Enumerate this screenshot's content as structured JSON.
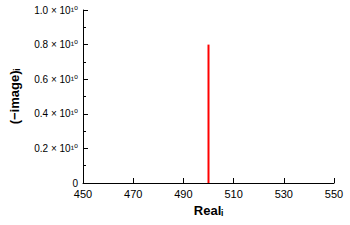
{
  "chart_data": {
    "type": "bar",
    "x_label": "Realᵢ",
    "y_label": "(−image)ᵢ",
    "x": [
      500
    ],
    "values": [
      8000000000
    ],
    "color": "#ff0000",
    "xlim": [
      450,
      550
    ],
    "xticks": [
      450,
      470,
      490,
      510,
      530,
      550
    ],
    "ylim": [
      0,
      10000000000
    ],
    "yticks": [
      0,
      {
        "value": 2000000000,
        "label": "0.2 × 10¹⁰"
      },
      {
        "value": 4000000000,
        "label": "0.4 × 10¹⁰"
      },
      {
        "value": 6000000000,
        "label": "0.6 × 10¹⁰"
      },
      {
        "value": 8000000000,
        "label": "0.8 × 10¹⁰"
      },
      {
        "value": 10000000000,
        "label": "1.0 × 10¹⁰"
      }
    ],
    "grid": false
  }
}
